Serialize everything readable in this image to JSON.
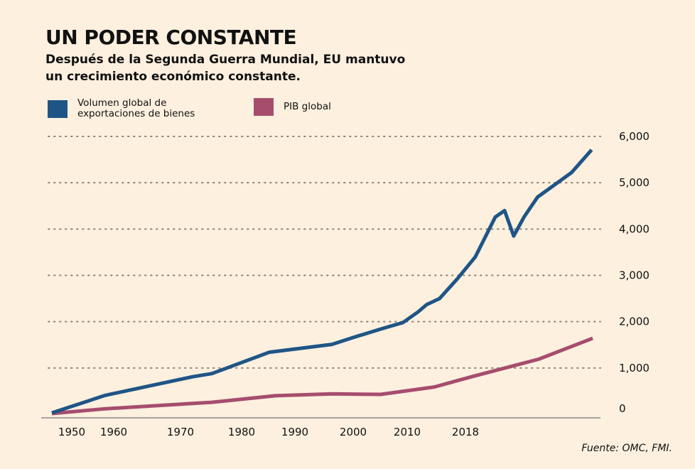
{
  "chart_data": {
    "type": "line",
    "title": "UN PODER CONSTANTE",
    "subtitle": "Después de la Segunda Guerra Mundial, EU mantuvo un crecimiento económico constante.",
    "xlabel": "",
    "ylabel": "",
    "ylim": [
      0,
      6000
    ],
    "yticks": [
      0,
      1000,
      2000,
      3000,
      4000,
      5000,
      6000
    ],
    "ytick_labels": [
      "0",
      "1,000",
      "2,000",
      "3,000",
      "4,000",
      "5,000",
      "6,000"
    ],
    "xtick_labels": [
      "1950",
      "1960",
      "1970",
      "1980",
      "1990",
      "2000",
      "2010",
      "2018"
    ],
    "grid": "horizontal-dotted",
    "legend_placement": "top-left",
    "colors": {
      "exports": "#1f5586",
      "gdp": "#a64d6e",
      "background": "#fdf0df"
    },
    "series": [
      {
        "name": "Volumen global de exportaciones de bienes",
        "key": "exports",
        "points": [
          {
            "x": 0.0,
            "y": 30
          },
          {
            "x": 0.099,
            "y": 410
          },
          {
            "x": 0.26,
            "y": 810
          },
          {
            "x": 0.296,
            "y": 880
          },
          {
            "x": 0.402,
            "y": 1340
          },
          {
            "x": 0.518,
            "y": 1510
          },
          {
            "x": 0.558,
            "y": 1660
          },
          {
            "x": 0.611,
            "y": 1850
          },
          {
            "x": 0.649,
            "y": 1980
          },
          {
            "x": 0.677,
            "y": 2210
          },
          {
            "x": 0.693,
            "y": 2370
          },
          {
            "x": 0.717,
            "y": 2500
          },
          {
            "x": 0.75,
            "y": 2930
          },
          {
            "x": 0.783,
            "y": 3400
          },
          {
            "x": 0.82,
            "y": 4260
          },
          {
            "x": 0.837,
            "y": 4400
          },
          {
            "x": 0.854,
            "y": 3850
          },
          {
            "x": 0.873,
            "y": 4260
          },
          {
            "x": 0.898,
            "y": 4690
          },
          {
            "x": 0.961,
            "y": 5220
          },
          {
            "x": 0.998,
            "y": 5710
          }
        ]
      },
      {
        "name": "PIB global",
        "key": "gdp",
        "points": [
          {
            "x": 0.0,
            "y": 15
          },
          {
            "x": 0.099,
            "y": 120
          },
          {
            "x": 0.296,
            "y": 260
          },
          {
            "x": 0.413,
            "y": 400
          },
          {
            "x": 0.518,
            "y": 440
          },
          {
            "x": 0.608,
            "y": 430
          },
          {
            "x": 0.707,
            "y": 590
          },
          {
            "x": 0.776,
            "y": 810
          },
          {
            "x": 0.9,
            "y": 1190
          },
          {
            "x": 1.0,
            "y": 1640
          }
        ]
      }
    ]
  },
  "legend": {
    "items": [
      {
        "label_line1": "Volumen global de",
        "label_line2": "exportaciones de bienes",
        "color": "#1f5586"
      },
      {
        "label": "PIB global",
        "color": "#a64d6e"
      }
    ]
  },
  "source": "Fuente: OMC, FMI."
}
